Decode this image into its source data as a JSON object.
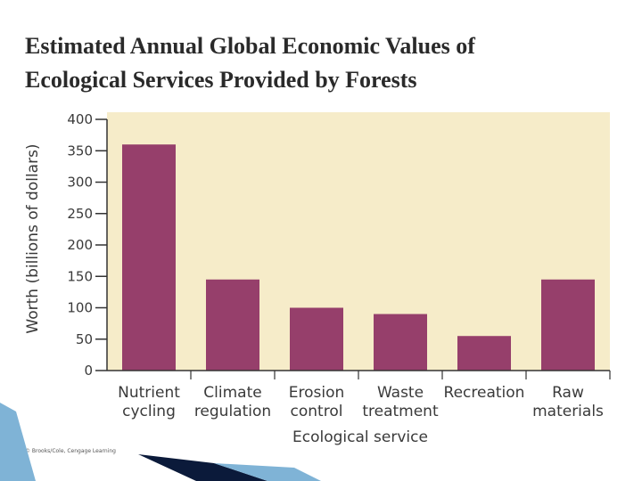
{
  "slide": {
    "title_line1": "Estimated Annual Global Economic Values of",
    "title_line2": "Ecological Services Provided by Forests",
    "credit": "© Brooks/Cole, Cengage Learning"
  },
  "colors": {
    "bar": "#963f6b",
    "plot_bg": "#f6ecc9",
    "axis": "#333333",
    "accent_dark": "#0b1a3a",
    "accent_light": "#7fb3d6"
  },
  "chart_data": {
    "type": "bar",
    "title": "",
    "categories": [
      [
        "Nutrient",
        "cycling"
      ],
      [
        "Climate",
        "regulation"
      ],
      [
        "Erosion",
        "control"
      ],
      [
        "Waste",
        "treatment"
      ],
      [
        "Recreation"
      ],
      [
        "Raw",
        "materials"
      ]
    ],
    "values": [
      360,
      145,
      100,
      90,
      55,
      145
    ],
    "xlabel": "Ecological service",
    "ylabel": "Worth (billions of dollars)",
    "ylim": [
      0,
      400
    ],
    "yticks": [
      0,
      50,
      100,
      150,
      200,
      250,
      300,
      350,
      400
    ],
    "grid": false
  }
}
